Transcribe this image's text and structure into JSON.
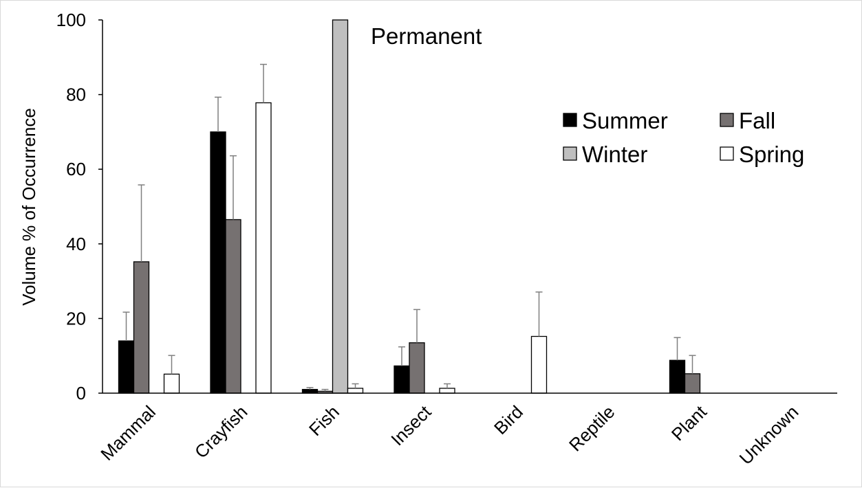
{
  "chart_data": {
    "type": "bar",
    "title": "",
    "annotation": "Permanent",
    "ylabel": "Volume % of Occurrence",
    "xlabel": "",
    "ylim": [
      0,
      100
    ],
    "yticks": [
      "0",
      "20",
      "40",
      "60",
      "80",
      "100"
    ],
    "grid": false,
    "legend_position": "top-right",
    "categories": [
      "Mammal",
      "Crayfish",
      "Fish",
      "Insect",
      "Bird",
      "Reptile",
      "Plant",
      "Unknown"
    ],
    "series": [
      {
        "name": "Summer",
        "color": "#000000",
        "values": [
          14,
          70,
          1,
          7.3,
          0,
          0,
          8.8,
          0
        ],
        "errors": [
          7.7,
          9.3,
          0.5,
          5.1,
          0,
          0,
          6.1,
          0
        ]
      },
      {
        "name": "Fall",
        "color": "#767171",
        "values": [
          35.2,
          46.5,
          0.5,
          13.5,
          0,
          0,
          5.2,
          0
        ],
        "errors": [
          20.6,
          17.1,
          0.5,
          8.9,
          0,
          0,
          4.9,
          0
        ]
      },
      {
        "name": "Winter",
        "color": "#bfbfbf",
        "values": [
          0,
          0,
          100,
          0,
          0,
          0,
          0,
          0
        ],
        "errors": [
          0,
          0,
          0,
          0,
          0,
          0,
          0,
          0
        ]
      },
      {
        "name": "Spring",
        "color": "#ffffff",
        "values": [
          5.1,
          77.8,
          1.3,
          1.3,
          15.2,
          0,
          0,
          0
        ],
        "errors": [
          5,
          10.3,
          1.2,
          1.2,
          11.9,
          0,
          0,
          0
        ]
      }
    ]
  }
}
